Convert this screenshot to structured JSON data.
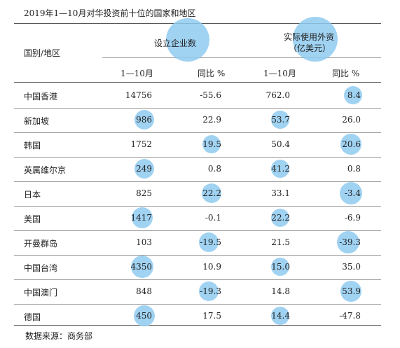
{
  "title": "2019年1—10月对华投资前十位的国家和地区",
  "header": {
    "country_label": "国别/地区",
    "group1": "设立企业数",
    "group2_line1": "实际使用外资",
    "group2_line2": "（亿美元）",
    "sub_period1": "1—10月",
    "sub_yoy1": "同比 %",
    "sub_period2": "1—10月",
    "sub_yoy2": "同比 %"
  },
  "rows": [
    {
      "name": "中国香港",
      "firms": "14756",
      "firms_yoy": "-55.6",
      "fdi": "762.0",
      "fdi_yoy": "8.4"
    },
    {
      "name": "新加坡",
      "firms": "986",
      "firms_yoy": "22.9",
      "fdi": "53.7",
      "fdi_yoy": "26.0"
    },
    {
      "name": "韩国",
      "firms": "1752",
      "firms_yoy": "19.5",
      "fdi": "50.4",
      "fdi_yoy": "20.6"
    },
    {
      "name": "英属维尔京",
      "firms": "249",
      "firms_yoy": "0.8",
      "fdi": "41.2",
      "fdi_yoy": "0.8"
    },
    {
      "name": "日本",
      "firms": "825",
      "firms_yoy": "22.2",
      "fdi": "33.1",
      "fdi_yoy": "-3.4"
    },
    {
      "name": "美国",
      "firms": "1417",
      "firms_yoy": "-0.1",
      "fdi": "22.2",
      "fdi_yoy": "-6.9"
    },
    {
      "name": "开曼群岛",
      "firms": "103",
      "firms_yoy": "-19.5",
      "fdi": "21.5",
      "fdi_yoy": "-39.3"
    },
    {
      "name": "中国台湾",
      "firms": "4350",
      "firms_yoy": "10.9",
      "fdi": "15.0",
      "fdi_yoy": "35.0"
    },
    {
      "name": "中国澳门",
      "firms": "848",
      "firms_yoy": "-19.3",
      "fdi": "14.8",
      "fdi_yoy": "53.9"
    },
    {
      "name": "德国",
      "firms": "450",
      "firms_yoy": "17.5",
      "fdi": "14.4",
      "fdi_yoy": "-47.8"
    }
  ],
  "source": "数据来源：商务部",
  "bubble_color": "#8fcaf0"
}
